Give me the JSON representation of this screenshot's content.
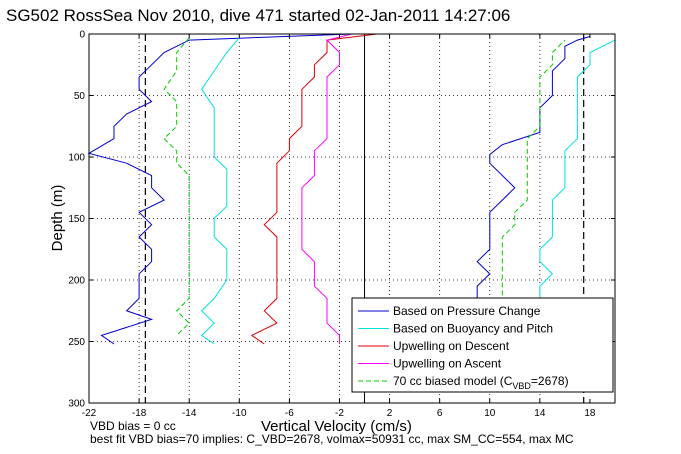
{
  "chart_data": {
    "type": "line",
    "title": "SG502 RossSea Nov 2010, dive 471 started 02-Jan-2011 14:27:06",
    "xlabel": "Vertical Velocity (cm/s)",
    "ylabel": "Depth (m)",
    "xlim": [
      -22,
      20
    ],
    "ylim": [
      300,
      0
    ],
    "y_reversed": true,
    "grid": true,
    "legend_position": "bottom-right",
    "xticks": [
      -22,
      -18,
      -14,
      -10,
      -6,
      -2,
      2,
      6,
      10,
      14,
      18
    ],
    "yticks": [
      0,
      50,
      100,
      150,
      200,
      250,
      300
    ],
    "reference_lines": {
      "dashed_black_x": [
        -17.5,
        17.5
      ],
      "solid_black_x": [
        0
      ]
    },
    "series": [
      {
        "name": "Based on Pressure Change",
        "color": "#0000cc",
        "style": "solid",
        "descent": [
          [
            -1,
            0
          ],
          [
            -14,
            5
          ],
          [
            -16,
            15
          ],
          [
            -17,
            25
          ],
          [
            -18,
            35
          ],
          [
            -18,
            45
          ],
          [
            -17,
            55
          ],
          [
            -19,
            65
          ],
          [
            -20,
            75
          ],
          [
            -20,
            85
          ],
          [
            -22,
            97
          ],
          [
            -19,
            105
          ],
          [
            -17,
            115
          ],
          [
            -17,
            125
          ],
          [
            -16,
            135
          ],
          [
            -18,
            145
          ],
          [
            -17,
            155
          ],
          [
            -18,
            165
          ],
          [
            -17,
            175
          ],
          [
            -17,
            185
          ],
          [
            -18,
            195
          ],
          [
            -18,
            205
          ],
          [
            -18,
            215
          ],
          [
            -19,
            225
          ],
          [
            -17,
            232
          ],
          [
            -21,
            245
          ],
          [
            -20,
            252
          ]
        ],
        "ascent": [
          [
            10,
            252
          ],
          [
            9,
            245
          ],
          [
            9,
            235
          ],
          [
            9,
            225
          ],
          [
            9,
            215
          ],
          [
            9,
            205
          ],
          [
            10,
            195
          ],
          [
            9,
            185
          ],
          [
            10,
            175
          ],
          [
            10,
            165
          ],
          [
            10,
            155
          ],
          [
            10,
            145
          ],
          [
            11,
            135
          ],
          [
            12,
            125
          ],
          [
            11,
            115
          ],
          [
            10,
            105
          ],
          [
            10,
            98
          ],
          [
            11,
            90
          ],
          [
            14,
            80
          ],
          [
            14,
            70
          ],
          [
            14,
            60
          ],
          [
            15,
            50
          ],
          [
            15,
            40
          ],
          [
            15,
            30
          ],
          [
            16,
            20
          ],
          [
            16,
            10
          ],
          [
            17,
            5
          ],
          [
            18,
            2
          ]
        ]
      },
      {
        "name": "Based on Buoyancy and Pitch",
        "color": "#00e0e0",
        "style": "solid",
        "descent": [
          [
            -10,
            3
          ],
          [
            -11,
            15
          ],
          [
            -12,
            30
          ],
          [
            -13,
            45
          ],
          [
            -12,
            60
          ],
          [
            -12,
            75
          ],
          [
            -12,
            90
          ],
          [
            -12,
            100
          ],
          [
            -11,
            110
          ],
          [
            -11,
            125
          ],
          [
            -11,
            140
          ],
          [
            -12,
            150
          ],
          [
            -12,
            165
          ],
          [
            -11,
            175
          ],
          [
            -11,
            190
          ],
          [
            -11,
            200
          ],
          [
            -12,
            215
          ],
          [
            -13,
            225
          ],
          [
            -12,
            235
          ],
          [
            -13,
            245
          ],
          [
            -12,
            252
          ]
        ],
        "ascent": [
          [
            13,
            252
          ],
          [
            14,
            245
          ],
          [
            14,
            235
          ],
          [
            14,
            225
          ],
          [
            14,
            215
          ],
          [
            14,
            205
          ],
          [
            15,
            195
          ],
          [
            14,
            185
          ],
          [
            14,
            175
          ],
          [
            15,
            165
          ],
          [
            15,
            155
          ],
          [
            15,
            145
          ],
          [
            15,
            135
          ],
          [
            16,
            125
          ],
          [
            16,
            115
          ],
          [
            16,
            105
          ],
          [
            16,
            95
          ],
          [
            17,
            85
          ],
          [
            17,
            75
          ],
          [
            17,
            65
          ],
          [
            17,
            55
          ],
          [
            17,
            45
          ],
          [
            17,
            35
          ],
          [
            18,
            25
          ],
          [
            18,
            15
          ],
          [
            20,
            5
          ]
        ]
      },
      {
        "name": "Upwelling on Descent",
        "color": "#dd0000",
        "style": "solid",
        "descent": [
          [
            1,
            0
          ],
          [
            -3,
            5
          ],
          [
            -3,
            15
          ],
          [
            -4,
            25
          ],
          [
            -4,
            35
          ],
          [
            -5,
            45
          ],
          [
            -5,
            55
          ],
          [
            -5,
            65
          ],
          [
            -5,
            75
          ],
          [
            -6,
            85
          ],
          [
            -6,
            95
          ],
          [
            -7,
            105
          ],
          [
            -7,
            115
          ],
          [
            -7,
            125
          ],
          [
            -7,
            135
          ],
          [
            -7,
            145
          ],
          [
            -8,
            155
          ],
          [
            -7,
            165
          ],
          [
            -7,
            175
          ],
          [
            -7,
            185
          ],
          [
            -7,
            195
          ],
          [
            -7,
            205
          ],
          [
            -7,
            215
          ],
          [
            -8,
            225
          ],
          [
            -7,
            235
          ],
          [
            -9,
            245
          ],
          [
            -8,
            252
          ]
        ]
      },
      {
        "name": "Upwelling on Ascent",
        "color": "#ff00ff",
        "style": "solid",
        "ascent": [
          [
            -2,
            252
          ],
          [
            -2,
            245
          ],
          [
            -3,
            235
          ],
          [
            -3,
            225
          ],
          [
            -3,
            215
          ],
          [
            -4,
            205
          ],
          [
            -4,
            195
          ],
          [
            -4,
            185
          ],
          [
            -5,
            175
          ],
          [
            -5,
            165
          ],
          [
            -5,
            155
          ],
          [
            -5,
            145
          ],
          [
            -5,
            135
          ],
          [
            -5,
            125
          ],
          [
            -4,
            115
          ],
          [
            -4,
            105
          ],
          [
            -4,
            95
          ],
          [
            -3,
            85
          ],
          [
            -3,
            75
          ],
          [
            -3,
            65
          ],
          [
            -3,
            55
          ],
          [
            -3,
            45
          ],
          [
            -3,
            35
          ],
          [
            -2,
            25
          ],
          [
            -2,
            15
          ],
          [
            -3,
            5
          ],
          [
            -1,
            0
          ]
        ]
      },
      {
        "name": "70 cc biased model (C_VBD=2678)",
        "color": "#00cc00",
        "style": "dashed",
        "descent": [
          [
            -14,
            3
          ],
          [
            -15,
            15
          ],
          [
            -15,
            30
          ],
          [
            -16,
            45
          ],
          [
            -15,
            55
          ],
          [
            -15,
            65
          ],
          [
            -15,
            75
          ],
          [
            -16,
            85
          ],
          [
            -15,
            95
          ],
          [
            -15,
            105
          ],
          [
            -14,
            115
          ],
          [
            -14,
            125
          ],
          [
            -14,
            135
          ],
          [
            -14,
            145
          ],
          [
            -14,
            155
          ],
          [
            -14,
            165
          ],
          [
            -14,
            175
          ],
          [
            -14,
            185
          ],
          [
            -14,
            195
          ],
          [
            -14,
            205
          ],
          [
            -14,
            215
          ],
          [
            -15,
            225
          ],
          [
            -14,
            235
          ],
          [
            -15,
            245
          ]
        ],
        "ascent": [
          [
            11,
            245
          ],
          [
            11,
            235
          ],
          [
            11,
            225
          ],
          [
            11,
            215
          ],
          [
            11,
            205
          ],
          [
            11,
            195
          ],
          [
            11,
            185
          ],
          [
            11,
            175
          ],
          [
            11,
            165
          ],
          [
            12,
            155
          ],
          [
            12,
            145
          ],
          [
            13,
            135
          ],
          [
            13,
            125
          ],
          [
            13,
            115
          ],
          [
            13,
            105
          ],
          [
            13,
            95
          ],
          [
            13,
            85
          ],
          [
            14,
            75
          ],
          [
            14,
            65
          ],
          [
            14,
            55
          ],
          [
            14,
            45
          ],
          [
            14,
            35
          ],
          [
            15,
            25
          ],
          [
            15,
            15
          ],
          [
            16,
            5
          ]
        ]
      }
    ]
  },
  "legend": {
    "items": [
      {
        "label": "Based on Pressure Change",
        "color": "#0000cc",
        "style": "solid"
      },
      {
        "label": "Based on Buoyancy and Pitch",
        "color": "#00e0e0",
        "style": "solid"
      },
      {
        "label": "Upwelling on Descent",
        "color": "#dd0000",
        "style": "solid"
      },
      {
        "label": "Upwelling on Ascent",
        "color": "#ff00ff",
        "style": "solid"
      },
      {
        "label_main": "70 cc biased model (C",
        "label_sub": "VBD",
        "label_tail": "=2678)",
        "color": "#00cc00",
        "style": "dashed"
      }
    ]
  },
  "footer": {
    "line1": "VBD bias = 0 cc",
    "line2": "best fit VBD bias=70 implies: C_VBD=2678, volmax=50931 cc, max SM_CC=554, max MC"
  }
}
